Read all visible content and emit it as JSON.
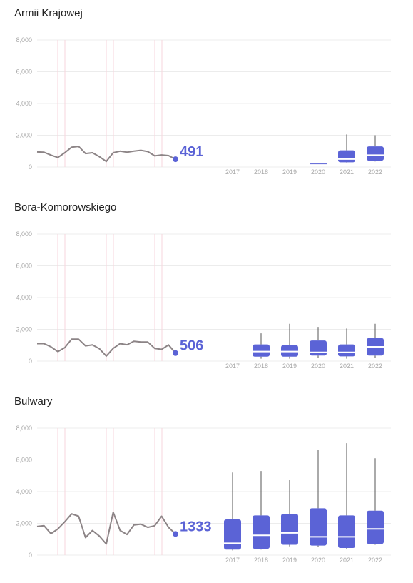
{
  "colors": {
    "line": "#8c8486",
    "accent": "#5b63d6",
    "grid": "#ececec",
    "marker_line": "#f7d6dc",
    "box": "#5b63d6",
    "median": "#ffffff",
    "whisker": "#555555",
    "tick": "#a8a8a8"
  },
  "charts": [
    {
      "title": "Armii Krajowej",
      "last_value": "491"
    },
    {
      "title": "Bora-Komorowskiego",
      "last_value": "506"
    },
    {
      "title": "Bulwary",
      "last_value": "1333"
    }
  ],
  "chart_data": [
    {
      "type": "line",
      "title": "Armii Krajowej",
      "ylim": [
        0,
        8000
      ],
      "yticks": [
        "0",
        "2,000",
        "4,000",
        "6,000",
        "8,000"
      ],
      "grid": true,
      "series": [
        {
          "values": [
            950,
            930,
            750,
            600,
            900,
            1250,
            1300,
            850,
            900,
            650,
            350,
            900,
            1000,
            930,
            1000,
            1050,
            970,
            700,
            760,
            720,
            491
          ]
        }
      ],
      "annotation": "491"
    },
    {
      "type": "box",
      "title": "Armii Krajowej",
      "categories": [
        "2017",
        "2018",
        "2019",
        "2020",
        "2021",
        "2022"
      ],
      "boxes": [
        null,
        null,
        null,
        {
          "min": 180,
          "q1": 180,
          "median": 200,
          "q3": 220,
          "max": 220
        },
        {
          "min": 280,
          "q1": 300,
          "median": 500,
          "q3": 1050,
          "max": 2050
        },
        {
          "min": 350,
          "q1": 400,
          "median": 750,
          "q3": 1300,
          "max": 2000
        }
      ],
      "ylim": [
        0,
        8000
      ]
    },
    {
      "type": "line",
      "title": "Bora-Komorowskiego",
      "ylim": [
        0,
        8000
      ],
      "yticks": [
        "0",
        "2,000",
        "4,000",
        "6,000",
        "8,000"
      ],
      "grid": true,
      "series": [
        {
          "values": [
            1100,
            1100,
            900,
            600,
            850,
            1380,
            1380,
            960,
            1020,
            780,
            320,
            800,
            1100,
            1030,
            1250,
            1200,
            1200,
            800,
            740,
            1020,
            506
          ]
        }
      ],
      "annotation": "506"
    },
    {
      "type": "box",
      "title": "Bora-Komorowskiego",
      "categories": [
        "2017",
        "2018",
        "2019",
        "2020",
        "2021",
        "2022"
      ],
      "boxes": [
        null,
        {
          "min": 150,
          "q1": 280,
          "median": 600,
          "q3": 1050,
          "max": 1750
        },
        {
          "min": 150,
          "q1": 280,
          "median": 600,
          "q3": 1000,
          "max": 2350
        },
        {
          "min": 200,
          "q1": 350,
          "median": 550,
          "q3": 1300,
          "max": 2150
        },
        {
          "min": 150,
          "q1": 300,
          "median": 550,
          "q3": 1050,
          "max": 2050
        },
        {
          "min": 200,
          "q1": 350,
          "median": 900,
          "q3": 1450,
          "max": 2350
        }
      ],
      "ylim": [
        0,
        8000
      ]
    },
    {
      "type": "line",
      "title": "Bulwary",
      "ylim": [
        0,
        8000
      ],
      "yticks": [
        "0",
        "2,000",
        "4,000",
        "6,000",
        "8,000"
      ],
      "grid": true,
      "series": [
        {
          "values": [
            1800,
            1850,
            1350,
            1650,
            2100,
            2600,
            2450,
            1100,
            1550,
            1200,
            700,
            2700,
            1550,
            1300,
            1900,
            1950,
            1750,
            1850,
            2450,
            1750,
            1333
          ]
        }
      ],
      "annotation": "1333"
    },
    {
      "type": "box",
      "title": "Bulwary",
      "categories": [
        "2017",
        "2018",
        "2019",
        "2020",
        "2021",
        "2022"
      ],
      "boxes": [
        {
          "min": 300,
          "q1": 350,
          "median": 750,
          "q3": 2250,
          "max": 5200
        },
        {
          "min": 350,
          "q1": 400,
          "median": 1250,
          "q3": 2500,
          "max": 5300
        },
        {
          "min": 550,
          "q1": 650,
          "median": 1400,
          "q3": 2600,
          "max": 4750
        },
        {
          "min": 500,
          "q1": 600,
          "median": 1150,
          "q3": 2950,
          "max": 6650
        },
        {
          "min": 400,
          "q1": 450,
          "median": 1150,
          "q3": 2500,
          "max": 7050
        },
        {
          "min": 650,
          "q1": 700,
          "median": 1650,
          "q3": 2800,
          "max": 6100
        }
      ],
      "ylim": [
        0,
        8000
      ]
    }
  ]
}
